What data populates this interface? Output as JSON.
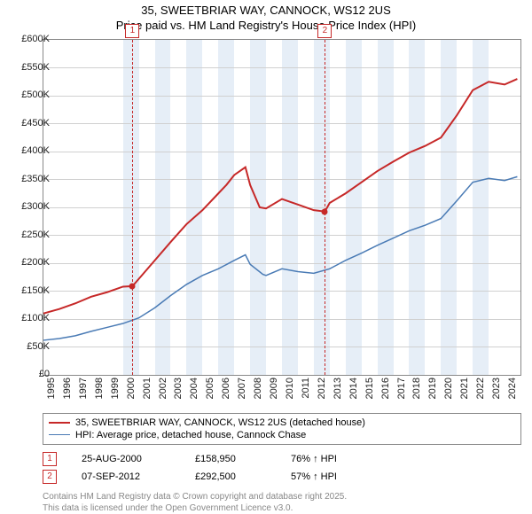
{
  "title_line1": "35, SWEETBRIAR WAY, CANNOCK, WS12 2US",
  "title_line2": "Price paid vs. HM Land Registry's House Price Index (HPI)",
  "chart": {
    "type": "line",
    "ylim": [
      0,
      600000
    ],
    "ytick_step": 50000,
    "y_labels": [
      "£0",
      "£50K",
      "£100K",
      "£150K",
      "£200K",
      "£250K",
      "£300K",
      "£350K",
      "£400K",
      "£450K",
      "£500K",
      "£550K",
      "£600K"
    ],
    "x_years": [
      1995,
      1996,
      1997,
      1998,
      1999,
      2000,
      2001,
      2002,
      2003,
      2004,
      2005,
      2006,
      2007,
      2008,
      2009,
      2010,
      2011,
      2012,
      2013,
      2014,
      2015,
      2016,
      2017,
      2018,
      2019,
      2020,
      2021,
      2022,
      2023,
      2024
    ],
    "grid_color": "#d0d0d0",
    "background_color": "#ffffff",
    "shade_color": "#e6eef7",
    "shade_bands": [
      [
        2000,
        2001
      ],
      [
        2002,
        2003
      ],
      [
        2004,
        2005
      ],
      [
        2006,
        2007
      ],
      [
        2008,
        2009
      ],
      [
        2010,
        2011
      ],
      [
        2012,
        2013
      ],
      [
        2014,
        2015
      ],
      [
        2016,
        2017
      ],
      [
        2018,
        2019
      ],
      [
        2020,
        2021
      ],
      [
        2022,
        2023
      ]
    ],
    "series": [
      {
        "name": "property",
        "color": "#c62828",
        "width": 2,
        "points": [
          [
            1995,
            110000
          ],
          [
            1996,
            118000
          ],
          [
            1997,
            128000
          ],
          [
            1998,
            140000
          ],
          [
            1999,
            148000
          ],
          [
            2000,
            158000
          ],
          [
            2000.6,
            158950
          ],
          [
            2001,
            172000
          ],
          [
            2002,
            205000
          ],
          [
            2003,
            238000
          ],
          [
            2004,
            270000
          ],
          [
            2005,
            295000
          ],
          [
            2006,
            325000
          ],
          [
            2006.5,
            340000
          ],
          [
            2007,
            358000
          ],
          [
            2007.7,
            372000
          ],
          [
            2008,
            340000
          ],
          [
            2008.6,
            300000
          ],
          [
            2009,
            298000
          ],
          [
            2010,
            315000
          ],
          [
            2011,
            305000
          ],
          [
            2012,
            295000
          ],
          [
            2012.7,
            292500
          ],
          [
            2013,
            308000
          ],
          [
            2014,
            325000
          ],
          [
            2015,
            345000
          ],
          [
            2016,
            365000
          ],
          [
            2017,
            382000
          ],
          [
            2018,
            398000
          ],
          [
            2019,
            410000
          ],
          [
            2020,
            425000
          ],
          [
            2021,
            465000
          ],
          [
            2022,
            510000
          ],
          [
            2023,
            525000
          ],
          [
            2024,
            520000
          ],
          [
            2024.8,
            530000
          ]
        ]
      },
      {
        "name": "hpi",
        "color": "#4a7bb5",
        "width": 1.5,
        "points": [
          [
            1995,
            62000
          ],
          [
            1996,
            65000
          ],
          [
            1997,
            70000
          ],
          [
            1998,
            78000
          ],
          [
            1999,
            85000
          ],
          [
            2000,
            92000
          ],
          [
            2001,
            102000
          ],
          [
            2002,
            120000
          ],
          [
            2003,
            142000
          ],
          [
            2004,
            162000
          ],
          [
            2005,
            178000
          ],
          [
            2006,
            190000
          ],
          [
            2007,
            205000
          ],
          [
            2007.7,
            215000
          ],
          [
            2008,
            198000
          ],
          [
            2008.8,
            180000
          ],
          [
            2009,
            178000
          ],
          [
            2010,
            190000
          ],
          [
            2011,
            185000
          ],
          [
            2012,
            182000
          ],
          [
            2013,
            190000
          ],
          [
            2014,
            205000
          ],
          [
            2015,
            218000
          ],
          [
            2016,
            232000
          ],
          [
            2017,
            245000
          ],
          [
            2018,
            258000
          ],
          [
            2019,
            268000
          ],
          [
            2020,
            280000
          ],
          [
            2021,
            312000
          ],
          [
            2022,
            345000
          ],
          [
            2023,
            352000
          ],
          [
            2024,
            348000
          ],
          [
            2024.8,
            355000
          ]
        ]
      }
    ],
    "events": [
      {
        "num": "1",
        "year": 2000.6,
        "y": 158950
      },
      {
        "num": "2",
        "year": 2012.7,
        "y": 292500
      }
    ]
  },
  "legend": {
    "items": [
      {
        "color": "#c62828",
        "width": 2,
        "label": "35, SWEETBRIAR WAY, CANNOCK, WS12 2US (detached house)"
      },
      {
        "color": "#4a7bb5",
        "width": 1.5,
        "label": "HPI: Average price, detached house, Cannock Chase"
      }
    ]
  },
  "event_rows": [
    {
      "num": "1",
      "date": "25-AUG-2000",
      "price": "£158,950",
      "pct": "76% ↑ HPI"
    },
    {
      "num": "2",
      "date": "07-SEP-2012",
      "price": "£292,500",
      "pct": "57% ↑ HPI"
    }
  ],
  "footer_line1": "Contains HM Land Registry data © Crown copyright and database right 2025.",
  "footer_line2": "This data is licensed under the Open Government Licence v3.0."
}
